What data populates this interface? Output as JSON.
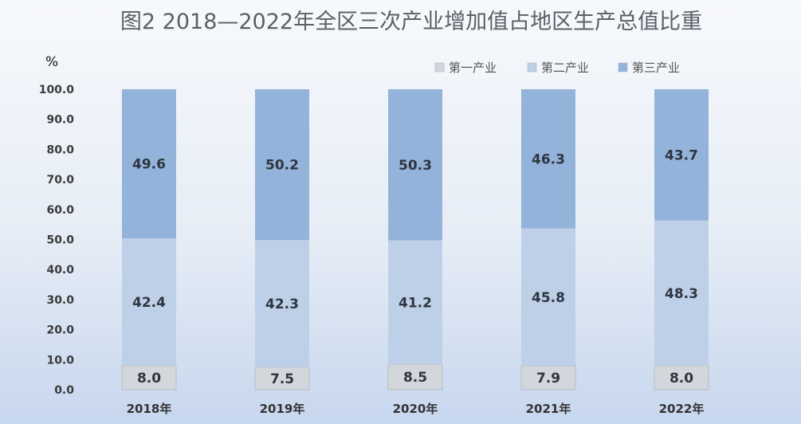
{
  "chart_data": {
    "type": "bar",
    "stacked": true,
    "title": "图2  2018—2022年全区三次产业增加值占地区生产总值比重",
    "unit_label": "%",
    "categories": [
      "2018年",
      "2019年",
      "2020年",
      "2021年",
      "2022年"
    ],
    "ylim": [
      0,
      100
    ],
    "yticks": [
      "0.0",
      "10.0",
      "20.0",
      "30.0",
      "40.0",
      "50.0",
      "60.0",
      "70.0",
      "80.0",
      "90.0",
      "100.0"
    ],
    "legend_position": "top-right",
    "grid": false,
    "series": [
      {
        "name": "第一产业",
        "values": [
          8.0,
          7.5,
          8.5,
          7.9,
          8.0
        ],
        "labels": [
          "8.0",
          "7.5",
          "8.5",
          "7.9",
          "8.0"
        ],
        "color": "#d3d6da"
      },
      {
        "name": "第二产业",
        "values": [
          42.4,
          42.3,
          41.2,
          45.8,
          48.3
        ],
        "labels": [
          "42.4",
          "42.3",
          "41.2",
          "45.8",
          "48.3"
        ],
        "color": "#bdd0e8"
      },
      {
        "name": "第三产业",
        "values": [
          49.6,
          50.2,
          50.3,
          46.3,
          43.7
        ],
        "labels": [
          "49.6",
          "50.2",
          "50.3",
          "46.3",
          "43.7"
        ],
        "color": "#94b3da"
      }
    ]
  }
}
